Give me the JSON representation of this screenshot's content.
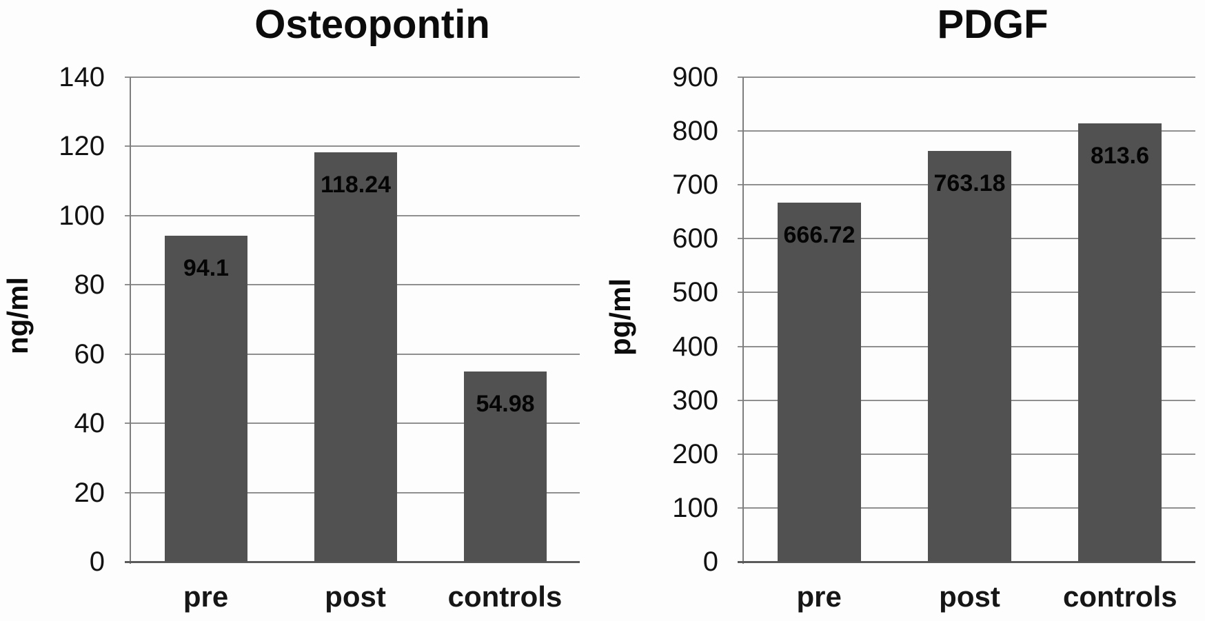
{
  "figure": {
    "background": "#fdfdfd",
    "text_color": "#0c0c0c",
    "gridline_color": "#8f8f8f",
    "axis_color": "#5a5a5a"
  },
  "chart_data": [
    {
      "type": "bar",
      "title": "Osteopontin",
      "ylabel": "ng/ml",
      "xlabel": "",
      "categories": [
        "pre",
        "post",
        "controls"
      ],
      "values": [
        94.1,
        118.24,
        54.98
      ],
      "value_labels": [
        "94.1",
        "118.24",
        "54.98"
      ],
      "ylim": [
        0,
        140
      ],
      "ytick_step": 20,
      "yticks": [
        "140",
        "120",
        "100",
        "80",
        "60",
        "40",
        "20",
        "0"
      ],
      "grid": true,
      "legend": "none",
      "bar_color": "#515151"
    },
    {
      "type": "bar",
      "title": "PDGF",
      "ylabel": "pg/ml",
      "xlabel": "",
      "categories": [
        "pre",
        "post",
        "controls"
      ],
      "values": [
        666.72,
        763.18,
        813.6
      ],
      "value_labels": [
        "666.72",
        "763.18",
        "813.6"
      ],
      "ylim": [
        0,
        900
      ],
      "ytick_step": 100,
      "yticks": [
        "900",
        "800",
        "700",
        "600",
        "500",
        "400",
        "300",
        "200",
        "100",
        "0"
      ],
      "grid": true,
      "legend": "none",
      "bar_color": "#515151"
    }
  ]
}
